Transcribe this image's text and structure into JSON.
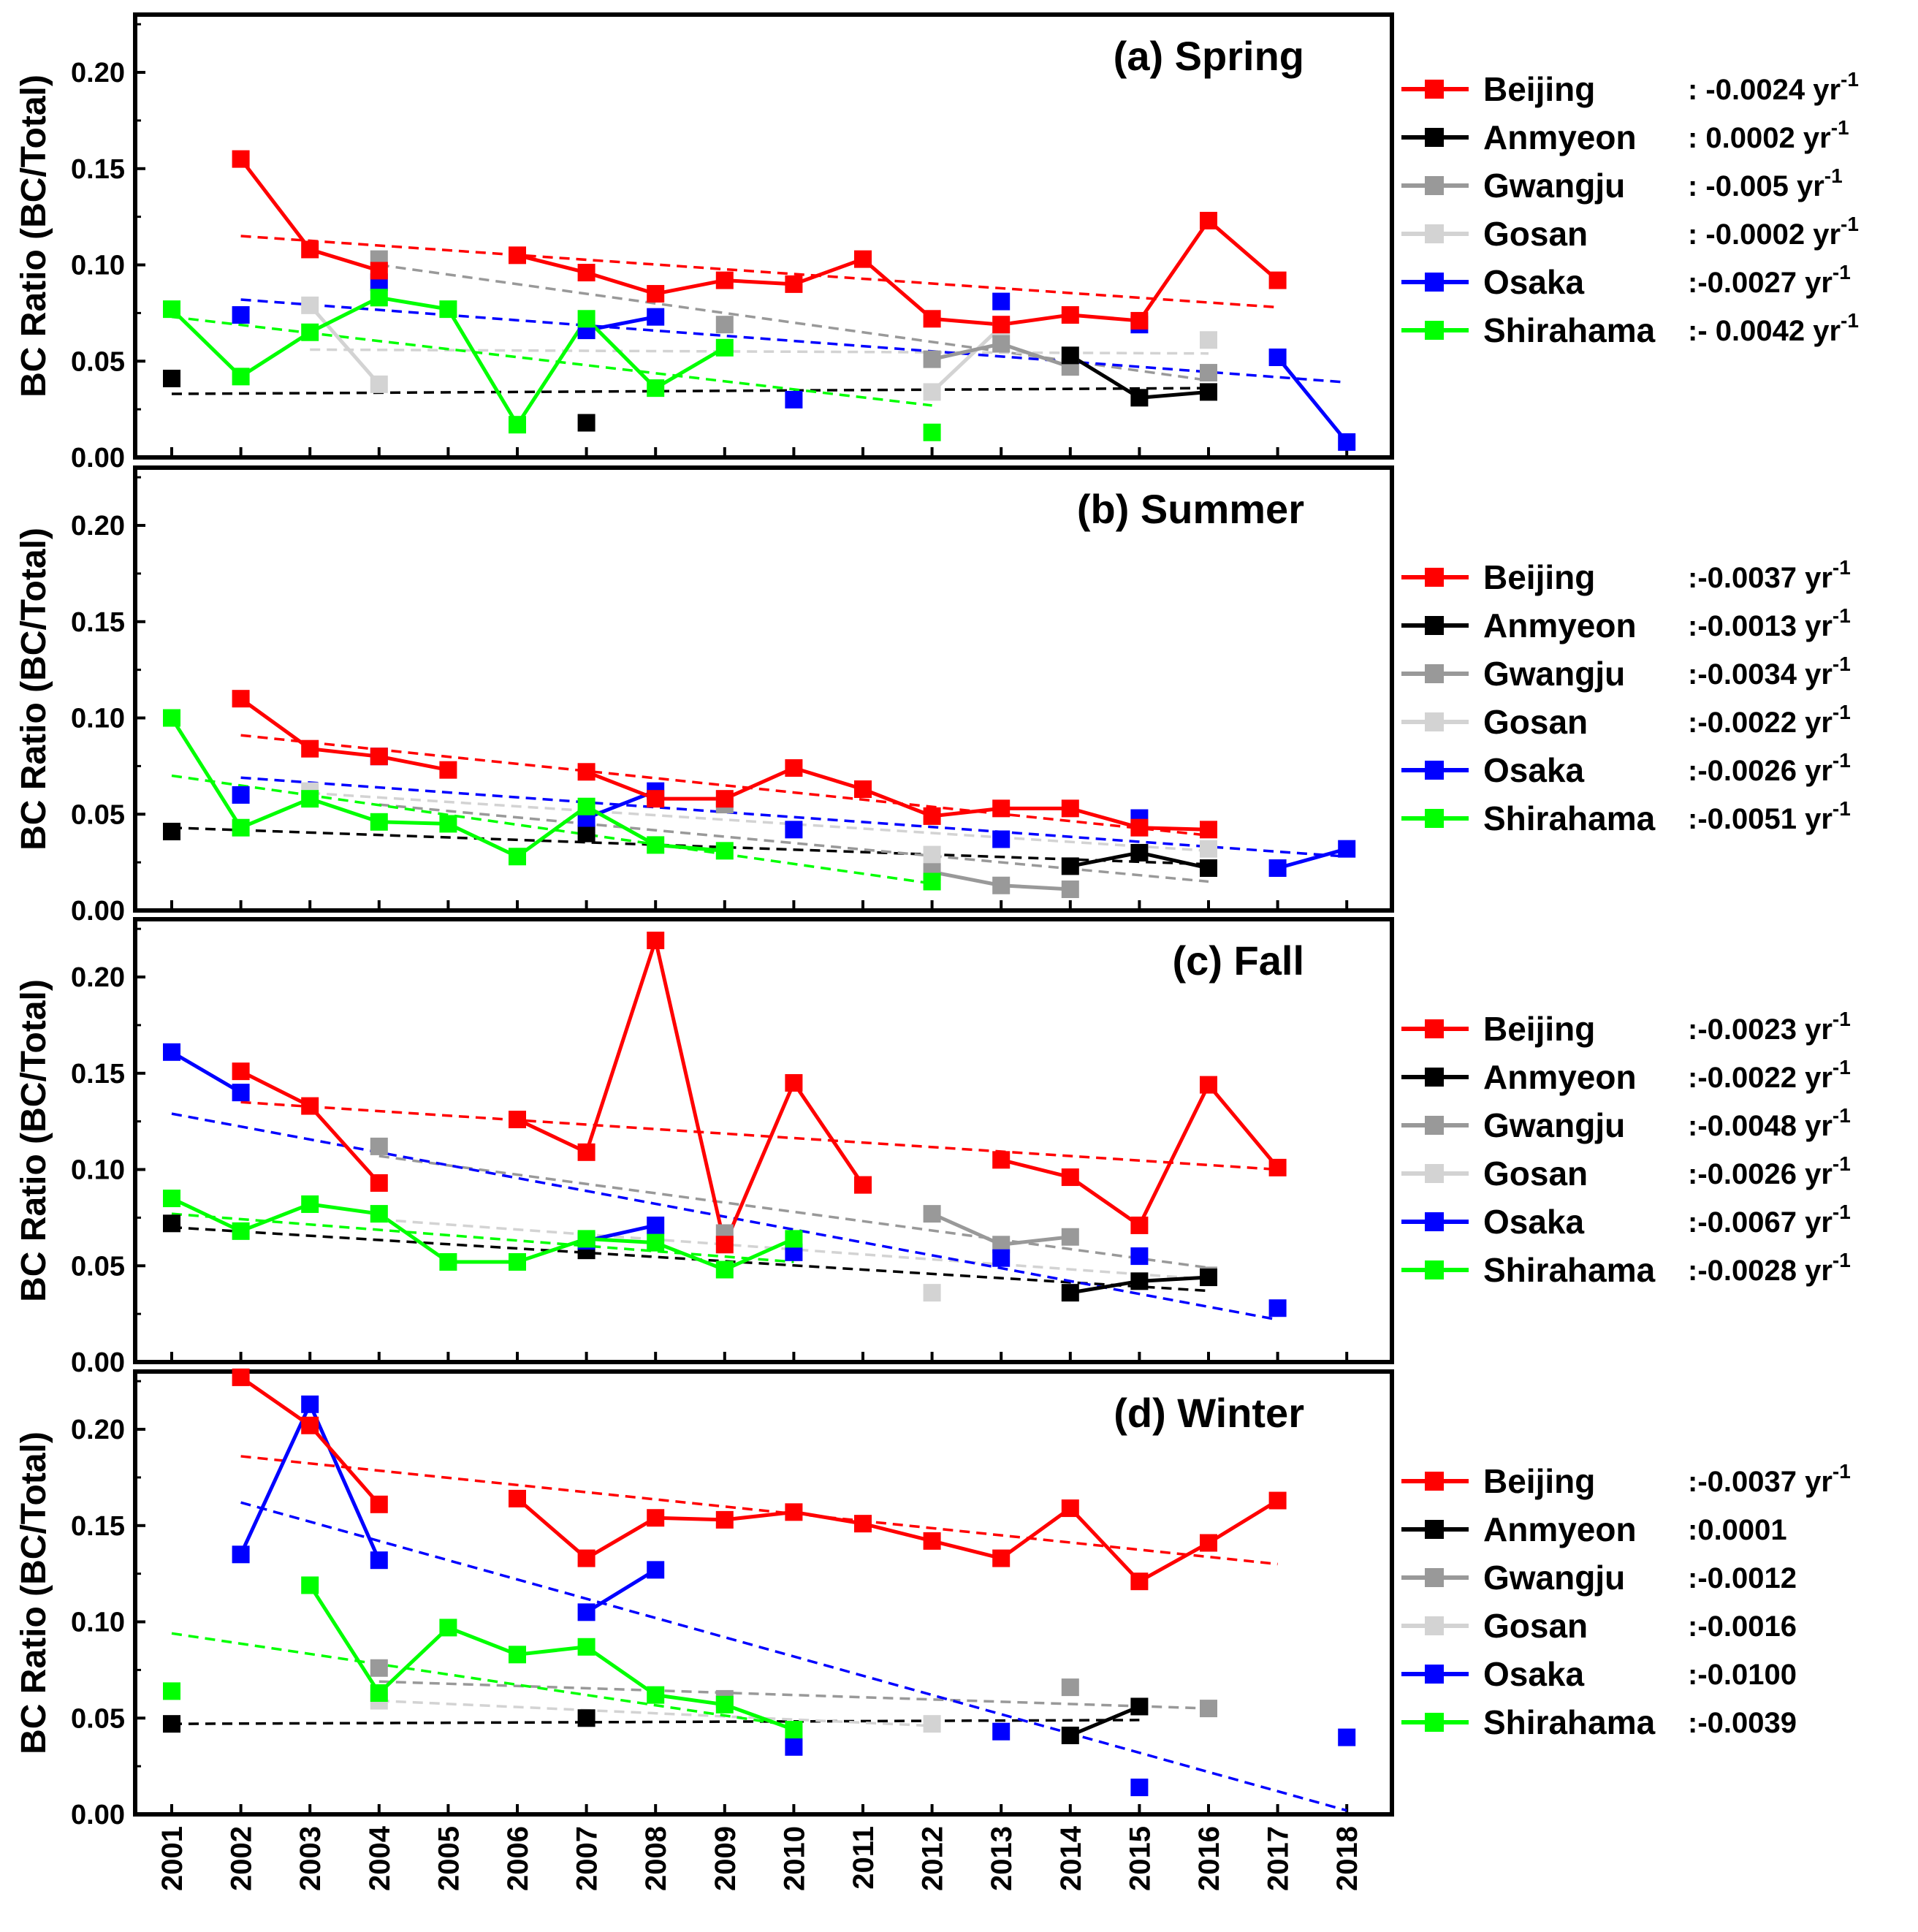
{
  "colors": {
    "Beijing": "#ff0000",
    "Anmyeon": "#000000",
    "Gwangju": "#999999",
    "Gosan": "#d3d3d3",
    "Osaka": "#0000ff",
    "Shirahama": "#00ff00"
  },
  "chart_data": [
    {
      "type": "line",
      "title": "(a) Spring",
      "ylabel": "BC Ratio (BC/Total)",
      "ylim": [
        0,
        0.23
      ],
      "yticks": [
        "0.00",
        "0.05",
        "0.10",
        "0.15",
        "0.20"
      ],
      "x": [
        2001,
        2002,
        2003,
        2004,
        2005,
        2006,
        2007,
        2008,
        2009,
        2010,
        2011,
        2012,
        2013,
        2014,
        2015,
        2016,
        2017,
        2018
      ],
      "series": [
        {
          "name": "Beijing",
          "trend_label": ": -0.0024 yr",
          "values": [
            null,
            0.155,
            0.108,
            0.097,
            null,
            0.105,
            0.096,
            0.085,
            0.092,
            0.09,
            0.103,
            0.072,
            0.069,
            0.074,
            0.071,
            0.123,
            0.092,
            null
          ],
          "trend": [
            2002,
            0.115,
            2017,
            0.078
          ]
        },
        {
          "name": "Anmyeon",
          "trend_label": ": 0.0002 yr",
          "values": [
            0.041,
            null,
            null,
            null,
            null,
            null,
            0.018,
            null,
            null,
            null,
            null,
            null,
            null,
            0.053,
            0.031,
            0.034,
            null,
            null
          ],
          "trend": [
            2001,
            0.033,
            2016,
            0.036
          ]
        },
        {
          "name": "Gwangju",
          "trend_label": ": -0.005 yr",
          "values": [
            null,
            null,
            null,
            0.103,
            null,
            null,
            null,
            null,
            0.069,
            null,
            null,
            0.051,
            0.059,
            0.047,
            null,
            0.044,
            null,
            null
          ],
          "trend": [
            2004,
            0.1,
            2016,
            0.04
          ]
        },
        {
          "name": "Gosan",
          "trend_label": ": -0.0002 yr",
          "values": [
            null,
            null,
            0.079,
            0.038,
            null,
            null,
            null,
            null,
            null,
            null,
            null,
            0.034,
            0.068,
            null,
            null,
            0.061,
            null,
            null
          ],
          "trend": [
            2003,
            0.056,
            2016,
            0.054
          ]
        },
        {
          "name": "Osaka",
          "trend_label": ":-0.0027 yr",
          "values": [
            null,
            0.074,
            null,
            0.091,
            null,
            null,
            0.066,
            0.073,
            null,
            0.03,
            null,
            null,
            0.081,
            null,
            0.069,
            null,
            0.052,
            0.008
          ],
          "trend": [
            2002,
            0.082,
            2018,
            0.039
          ]
        },
        {
          "name": "Shirahama",
          "trend_label": ":- 0.0042 yr",
          "values": [
            0.077,
            0.042,
            0.065,
            0.083,
            0.077,
            0.017,
            0.072,
            0.036,
            0.057,
            null,
            null,
            0.013,
            null,
            null,
            null,
            null,
            null,
            null
          ],
          "trend": [
            2001,
            0.073,
            2012,
            0.027
          ]
        }
      ]
    },
    {
      "type": "line",
      "title": "(b) Summer",
      "ylabel": "BC Ratio (BC/Total)",
      "ylim": [
        0,
        0.23
      ],
      "yticks": [
        "0.00",
        "0.05",
        "0.10",
        "0.15",
        "0.20"
      ],
      "x": [
        2001,
        2002,
        2003,
        2004,
        2005,
        2006,
        2007,
        2008,
        2009,
        2010,
        2011,
        2012,
        2013,
        2014,
        2015,
        2016,
        2017,
        2018
      ],
      "series": [
        {
          "name": "Beijing",
          "trend_label": ":-0.0037 yr",
          "values": [
            null,
            0.11,
            0.084,
            0.08,
            0.073,
            null,
            0.072,
            0.058,
            0.058,
            0.074,
            0.063,
            0.049,
            0.053,
            0.053,
            0.043,
            0.042,
            null,
            null
          ],
          "trend": [
            2002,
            0.091,
            2016,
            0.039
          ]
        },
        {
          "name": "Anmyeon",
          "trend_label": ":-0.0013 yr",
          "values": [
            0.041,
            null,
            null,
            null,
            null,
            null,
            0.04,
            null,
            null,
            null,
            null,
            null,
            null,
            0.023,
            0.03,
            0.022,
            null,
            null
          ],
          "trend": [
            2001,
            0.043,
            2016,
            0.024
          ]
        },
        {
          "name": "Gwangju",
          "trend_label": ":-0.0034 yr",
          "values": [
            null,
            null,
            null,
            null,
            null,
            null,
            null,
            null,
            0.055,
            null,
            null,
            0.02,
            0.013,
            0.011,
            null,
            null,
            null,
            null
          ],
          "trend": [
            2004,
            0.055,
            2016,
            0.015
          ]
        },
        {
          "name": "Gosan",
          "trend_label": ":-0.0022 yr",
          "values": [
            null,
            null,
            0.062,
            null,
            null,
            null,
            null,
            null,
            null,
            null,
            null,
            0.029,
            null,
            null,
            null,
            0.032,
            null,
            null
          ],
          "trend": [
            2003,
            0.061,
            2016,
            0.031
          ]
        },
        {
          "name": "Osaka",
          "trend_label": ":-0.0026 yr",
          "values": [
            null,
            0.06,
            null,
            0.08,
            null,
            null,
            0.048,
            0.062,
            null,
            0.042,
            null,
            null,
            0.037,
            null,
            0.048,
            null,
            0.022,
            0.032
          ],
          "trend": [
            2002,
            0.069,
            2018,
            0.028
          ]
        },
        {
          "name": "Shirahama",
          "trend_label": ":-0.0051 yr",
          "values": [
            0.1,
            0.043,
            0.058,
            0.046,
            0.045,
            0.028,
            0.054,
            0.034,
            0.031,
            null,
            null,
            0.015,
            null,
            null,
            null,
            null,
            null,
            null
          ],
          "trend": [
            2001,
            0.07,
            2012,
            0.014
          ]
        }
      ]
    },
    {
      "type": "line",
      "title": "(c) Fall",
      "ylabel": "BC Ratio (BC/Total)",
      "ylim": [
        0,
        0.23
      ],
      "yticks": [
        "0.00",
        "0.05",
        "0.10",
        "0.15",
        "0.20"
      ],
      "x": [
        2001,
        2002,
        2003,
        2004,
        2005,
        2006,
        2007,
        2008,
        2009,
        2010,
        2011,
        2012,
        2013,
        2014,
        2015,
        2016,
        2017,
        2018
      ],
      "series": [
        {
          "name": "Beijing",
          "trend_label": ":-0.0023 yr",
          "values": [
            null,
            0.151,
            0.133,
            0.093,
            null,
            0.126,
            0.109,
            0.219,
            0.061,
            0.145,
            0.092,
            null,
            0.105,
            0.096,
            0.071,
            0.144,
            0.101,
            null
          ],
          "trend": [
            2002,
            0.135,
            2017,
            0.1
          ]
        },
        {
          "name": "Anmyeon",
          "trend_label": ":-0.0022 yr",
          "values": [
            0.072,
            null,
            null,
            null,
            null,
            null,
            0.058,
            null,
            null,
            null,
            null,
            null,
            null,
            0.036,
            0.042,
            0.044,
            null,
            null
          ],
          "trend": [
            2001,
            0.07,
            2016,
            0.037
          ]
        },
        {
          "name": "Gwangju",
          "trend_label": ":-0.0048 yr",
          "values": [
            null,
            null,
            null,
            0.112,
            null,
            null,
            null,
            null,
            0.067,
            null,
            null,
            0.077,
            0.061,
            0.065,
            null,
            0.045,
            null,
            null
          ],
          "trend": [
            2004,
            0.107,
            2016,
            0.049
          ]
        },
        {
          "name": "Gosan",
          "trend_label": ":-0.0026 yr",
          "values": [
            null,
            null,
            null,
            0.077,
            null,
            null,
            null,
            null,
            null,
            null,
            null,
            0.036,
            null,
            null,
            null,
            0.044,
            null,
            null
          ],
          "trend": [
            2004,
            0.074,
            2016,
            0.043
          ]
        },
        {
          "name": "Osaka",
          "trend_label": ":-0.0067 yr",
          "values": [
            0.161,
            0.14,
            null,
            null,
            null,
            null,
            0.063,
            0.071,
            null,
            0.057,
            null,
            null,
            0.054,
            null,
            0.055,
            null,
            0.028,
            null
          ],
          "trend": [
            2001,
            0.129,
            2017,
            0.022
          ]
        },
        {
          "name": "Shirahama",
          "trend_label": ":-0.0028 yr",
          "values": [
            0.085,
            0.068,
            0.082,
            0.077,
            0.052,
            0.052,
            0.064,
            0.062,
            0.048,
            0.064,
            null,
            null,
            null,
            null,
            null,
            null,
            null,
            null
          ],
          "trend": [
            2001,
            0.077,
            2010,
            0.052
          ]
        }
      ]
    },
    {
      "type": "line",
      "title": "(d) Winter",
      "ylabel": "BC Ratio (BC/Total)",
      "ylim": [
        0,
        0.23
      ],
      "yticks": [
        "0.00",
        "0.05",
        "0.10",
        "0.15",
        "0.20"
      ],
      "xticks": [
        "2001",
        "2002",
        "2003",
        "2004",
        "2005",
        "2006",
        "2007",
        "2008",
        "2009",
        "2010",
        "2011",
        "2012",
        "2013",
        "2014",
        "2015",
        "2016",
        "2017",
        "2018"
      ],
      "x": [
        2001,
        2002,
        2003,
        2004,
        2005,
        2006,
        2007,
        2008,
        2009,
        2010,
        2011,
        2012,
        2013,
        2014,
        2015,
        2016,
        2017,
        2018
      ],
      "series": [
        {
          "name": "Beijing",
          "trend_label": ":-0.0037 yr",
          "values": [
            null,
            0.227,
            0.202,
            0.161,
            null,
            0.164,
            0.133,
            0.154,
            0.153,
            0.157,
            0.151,
            0.142,
            0.133,
            0.159,
            0.121,
            0.141,
            0.163,
            null
          ],
          "trend": [
            2002,
            0.186,
            2017,
            0.13
          ]
        },
        {
          "name": "Anmyeon",
          "trend_label": ":0.0001",
          "values": [
            0.047,
            null,
            null,
            null,
            null,
            null,
            0.05,
            null,
            null,
            null,
            null,
            null,
            null,
            0.041,
            0.056,
            null,
            null,
            null
          ],
          "trend": [
            2001,
            0.047,
            2015,
            0.049
          ]
        },
        {
          "name": "Gwangju",
          "trend_label": ":-0.0012",
          "values": [
            null,
            null,
            null,
            0.076,
            null,
            null,
            null,
            null,
            0.06,
            null,
            null,
            null,
            null,
            0.066,
            null,
            0.055,
            null,
            null
          ],
          "trend": [
            2004,
            0.069,
            2016,
            0.055
          ]
        },
        {
          "name": "Gosan",
          "trend_label": ":-0.0016",
          "values": [
            null,
            null,
            null,
            0.059,
            null,
            null,
            null,
            null,
            null,
            null,
            null,
            0.047,
            null,
            null,
            null,
            null,
            null,
            null
          ],
          "trend": [
            2004,
            0.059,
            2012,
            0.046
          ]
        },
        {
          "name": "Osaka",
          "trend_label": ":-0.0100",
          "values": [
            null,
            0.135,
            0.213,
            0.132,
            null,
            null,
            0.105,
            0.127,
            null,
            0.035,
            null,
            null,
            0.043,
            null,
            0.014,
            null,
            null,
            0.04
          ],
          "trend": [
            2002,
            0.162,
            2018,
            0.002
          ]
        },
        {
          "name": "Shirahama",
          "trend_label": ":-0.0039",
          "values": [
            0.064,
            null,
            0.119,
            0.063,
            0.097,
            0.083,
            0.087,
            0.062,
            0.057,
            0.044,
            null,
            null,
            null,
            null,
            null,
            null,
            null,
            null
          ],
          "trend": [
            2001,
            0.094,
            2010,
            0.046
          ]
        }
      ]
    }
  ]
}
